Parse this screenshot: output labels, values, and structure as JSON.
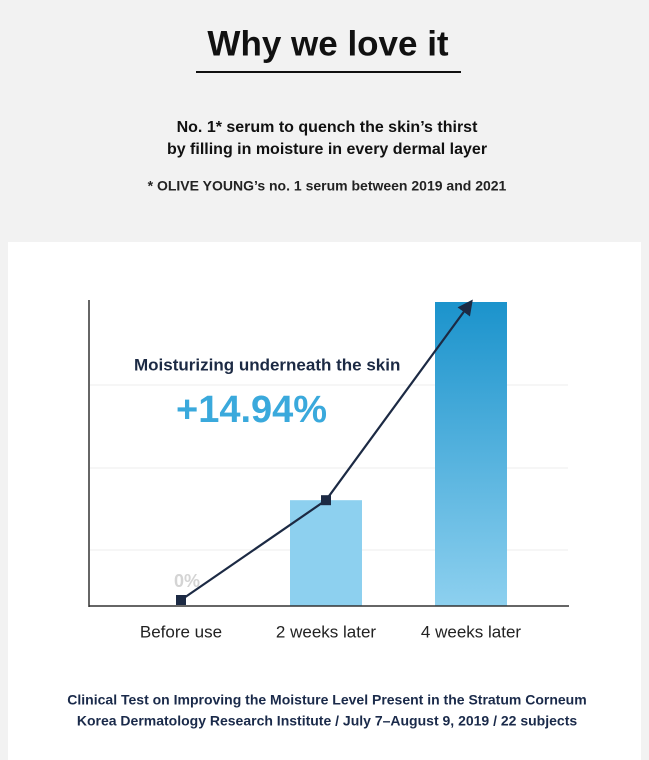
{
  "header": {
    "title": "Why we love it",
    "subtitle": [
      "No. 1* serum to quench the skin’s thirst",
      "by filling in moisture in every dermal layer"
    ],
    "note": "* OLIVE YOUNG’s no. 1 serum between 2019 and 2021"
  },
  "chart_data": {
    "type": "bar",
    "annotation": "Moisturizing underneath the skin",
    "categories": [
      "Before use",
      "2 weeks later",
      "4 weeks later"
    ],
    "values": [
      0,
      5.2,
      14.94
    ],
    "value_labels": [
      "0%",
      null,
      "+14.94%"
    ],
    "colors": [
      "#c9e8f6",
      "#8dd0ef",
      "#1b93cc"
    ],
    "line_color": "#1c2a44",
    "ylim": [
      0,
      14.94
    ]
  },
  "caption": [
    "Clinical Test on Improving the Moisture Level Present in the Stratum Corneum",
    "Korea Dermatology Research Institute / July 7–August 9, 2019 / 22 subjects"
  ]
}
